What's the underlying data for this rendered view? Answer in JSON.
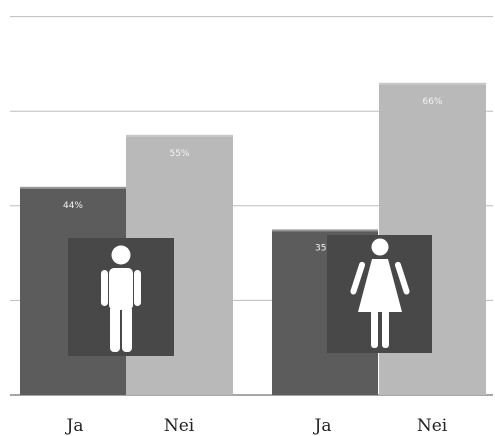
{
  "chart_data": {
    "type": "bar",
    "ylim": [
      0,
      80
    ],
    "grid": true,
    "colors": {
      "Ja": "#5c5c5c",
      "Nei": "#b9b9b9",
      "icon_box": "#484848",
      "grid": "#bdbdbd"
    },
    "groups": [
      {
        "icon": "man-icon",
        "bars": [
          {
            "category": "Ja",
            "value": 44,
            "label": "44%"
          },
          {
            "category": "Nei",
            "value": 55,
            "label": "55%"
          }
        ]
      },
      {
        "icon": "woman-icon",
        "bars": [
          {
            "category": "Ja",
            "value": 35,
            "label": "35%"
          },
          {
            "category": "Nei",
            "value": 66,
            "label": "66%"
          }
        ]
      }
    ]
  }
}
